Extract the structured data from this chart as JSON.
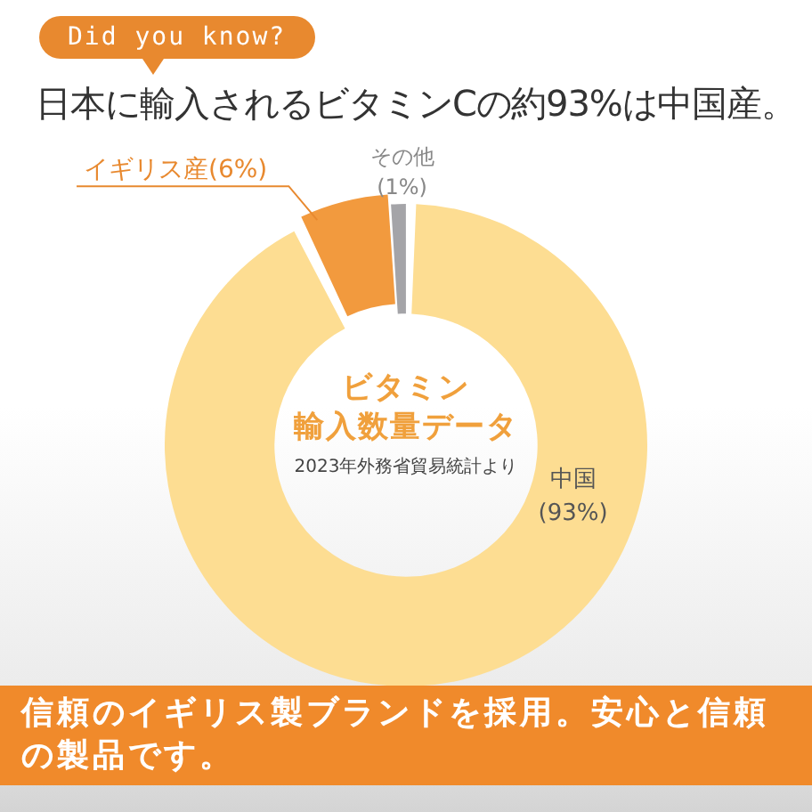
{
  "chart_data": {
    "type": "donut",
    "title": "日本に輸入されるビタミンCの約93%は中国産。",
    "subtitle": "ビタミン輸入数量データ",
    "categories": [
      "中国",
      "イギリス産",
      "その他"
    ],
    "values": [
      93,
      6,
      1
    ],
    "value_labels": [
      "(93%)",
      "(6%)",
      "(1%)"
    ],
    "colors": [
      "#fddd92",
      "#f29a3e",
      "#a4a4a8"
    ],
    "annotations": [
      "Did you know?",
      "2023年外務省貿易統計より",
      "信頼のイギリス製ブランドを採用。安心と信頼の製品です。"
    ]
  }
}
